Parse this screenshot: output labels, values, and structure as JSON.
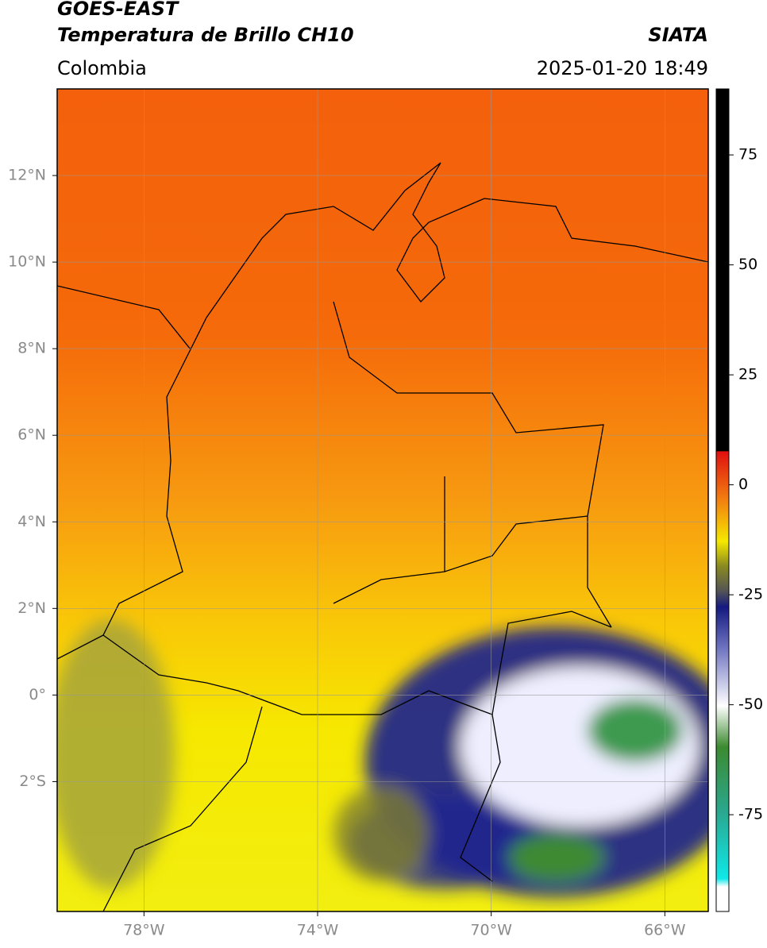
{
  "header": {
    "satellite": "GOES-EAST",
    "product": "Temperatura de Brillo CH10",
    "source": "SIATA",
    "region": "Colombia",
    "datetime": "2025-01-20 18:49"
  },
  "map": {
    "xlim": [
      -80,
      -65
    ],
    "ylim": [
      -5,
      14
    ],
    "xticks": [
      {
        "value": -78,
        "label": "78°W"
      },
      {
        "value": -74,
        "label": "74°W"
      },
      {
        "value": -70,
        "label": "70°W"
      },
      {
        "value": -66,
        "label": "66°W"
      }
    ],
    "yticks": [
      {
        "value": 12,
        "label": "12°N"
      },
      {
        "value": 10,
        "label": "10°N"
      },
      {
        "value": 8,
        "label": "8°N"
      },
      {
        "value": 6,
        "label": "6°N"
      },
      {
        "value": 4,
        "label": "4°N"
      },
      {
        "value": 2,
        "label": "2°N"
      },
      {
        "value": 0,
        "label": "0°"
      },
      {
        "value": -2,
        "label": "2°S"
      }
    ],
    "grid": true
  },
  "colorbar": {
    "lim": [
      -97,
      90
    ],
    "ticks": [
      75,
      50,
      25,
      0,
      -25,
      -50,
      -75
    ]
  }
}
